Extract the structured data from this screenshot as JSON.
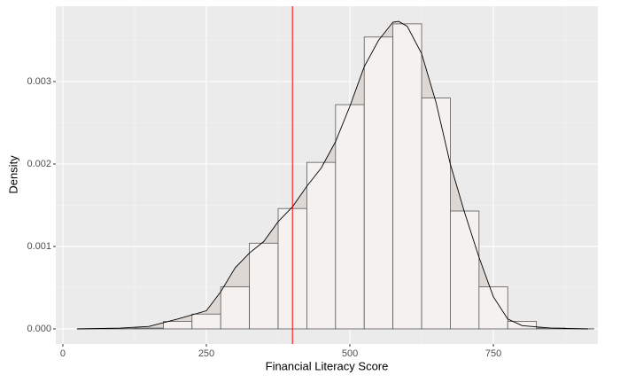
{
  "chart_data": {
    "type": "histogram",
    "xlabel": "Financial Literacy Score",
    "ylabel": "Density",
    "bins": [
      25,
      75,
      125,
      175,
      225,
      275,
      325,
      375,
      425,
      475,
      525,
      575,
      625,
      675,
      725,
      775,
      825,
      875,
      925
    ],
    "values": [
      2e-06,
      4e-06,
      1e-05,
      9e-05,
      0.00018,
      0.00051,
      0.00104,
      0.00146,
      0.00202,
      0.00272,
      0.00354,
      0.0037,
      0.0028,
      0.00143,
      0.00051,
      9e-05,
      1e-05,
      2e-06
    ],
    "color": "#f5f1ef",
    "edge_color": "#595959",
    "density": {
      "x": [
        25,
        100,
        150,
        200,
        250,
        275,
        300,
        325,
        350,
        375,
        400,
        425,
        450,
        475,
        500,
        525,
        550,
        575,
        585,
        600,
        625,
        650,
        675,
        700,
        725,
        750,
        775,
        800,
        850,
        915
      ],
      "y": [
        0.0,
        1e-05,
        3e-05,
        0.00012,
        0.00022,
        0.00045,
        0.00074,
        0.00092,
        0.00106,
        0.0013,
        0.00148,
        0.00173,
        0.00195,
        0.00227,
        0.0027,
        0.00318,
        0.0035,
        0.00372,
        0.00373,
        0.00367,
        0.00334,
        0.00275,
        0.002,
        0.00141,
        0.00087,
        0.00039,
        0.00012,
        4e-05,
        1e-05,
        0.0
      ],
      "color": "#000000",
      "fill": "#ddd8d4"
    },
    "vline": {
      "x": 400,
      "color": "#ff0000"
    },
    "xlim": [
      -12.3,
      932
    ],
    "ylim": [
      -0.000183,
      0.003914
    ],
    "xticks": [
      0,
      250,
      500,
      750
    ],
    "yticks": [
      {
        "value": 0,
        "label": "0.000"
      },
      {
        "value": 0.001,
        "label": "0.001"
      },
      {
        "value": 0.002,
        "label": "0.002"
      },
      {
        "value": 0.003,
        "label": "0.003"
      }
    ],
    "grid": true,
    "background": "#ebebeb"
  }
}
